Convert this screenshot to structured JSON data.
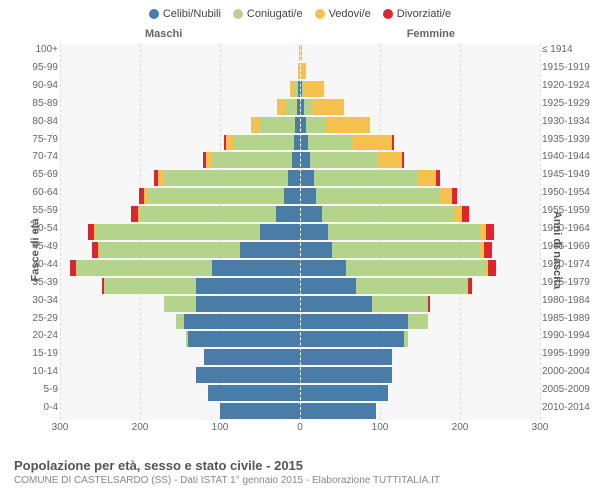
{
  "legend": [
    {
      "label": "Celibi/Nubili",
      "color": "#4a7ca8"
    },
    {
      "label": "Coniugati/e",
      "color": "#b3d48a"
    },
    {
      "label": "Vedovi/e",
      "color": "#f4c04e"
    },
    {
      "label": "Divorziati/e",
      "color": "#d9262f"
    }
  ],
  "gender": {
    "male": "Maschi",
    "female": "Femmine"
  },
  "axis": {
    "left_title": "Fasce di età",
    "right_title": "Anni di nascita",
    "x_ticks": [
      300,
      200,
      100,
      0,
      100,
      200,
      300
    ],
    "x_max": 300
  },
  "rows": [
    {
      "age": "100+",
      "birth": "≤ 1914",
      "m": {
        "c": 0,
        "s": 0,
        "v": 1,
        "d": 0
      },
      "f": {
        "c": 0,
        "s": 0,
        "v": 2,
        "d": 0
      }
    },
    {
      "age": "95-99",
      "birth": "1915-1919",
      "m": {
        "c": 0,
        "s": 0,
        "v": 3,
        "d": 0
      },
      "f": {
        "c": 0,
        "s": 0,
        "v": 8,
        "d": 0
      }
    },
    {
      "age": "90-94",
      "birth": "1920-1924",
      "m": {
        "c": 3,
        "s": 4,
        "v": 6,
        "d": 0
      },
      "f": {
        "c": 2,
        "s": 3,
        "v": 25,
        "d": 0
      }
    },
    {
      "age": "85-89",
      "birth": "1925-1929",
      "m": {
        "c": 4,
        "s": 15,
        "v": 10,
        "d": 0
      },
      "f": {
        "c": 5,
        "s": 10,
        "v": 40,
        "d": 0
      }
    },
    {
      "age": "80-84",
      "birth": "1930-1934",
      "m": {
        "c": 6,
        "s": 45,
        "v": 10,
        "d": 0
      },
      "f": {
        "c": 8,
        "s": 25,
        "v": 55,
        "d": 0
      }
    },
    {
      "age": "75-79",
      "birth": "1935-1939",
      "m": {
        "c": 8,
        "s": 75,
        "v": 10,
        "d": 2
      },
      "f": {
        "c": 10,
        "s": 55,
        "v": 50,
        "d": 3
      }
    },
    {
      "age": "70-74",
      "birth": "1940-1944",
      "m": {
        "c": 10,
        "s": 100,
        "v": 8,
        "d": 3
      },
      "f": {
        "c": 12,
        "s": 85,
        "v": 30,
        "d": 3
      }
    },
    {
      "age": "65-69",
      "birth": "1945-1949",
      "m": {
        "c": 15,
        "s": 155,
        "v": 8,
        "d": 5
      },
      "f": {
        "c": 18,
        "s": 130,
        "v": 22,
        "d": 5
      }
    },
    {
      "age": "60-64",
      "birth": "1950-1954",
      "m": {
        "c": 20,
        "s": 170,
        "v": 5,
        "d": 6
      },
      "f": {
        "c": 20,
        "s": 155,
        "v": 15,
        "d": 6
      }
    },
    {
      "age": "55-59",
      "birth": "1955-1959",
      "m": {
        "c": 30,
        "s": 170,
        "v": 3,
        "d": 8
      },
      "f": {
        "c": 28,
        "s": 165,
        "v": 10,
        "d": 8
      }
    },
    {
      "age": "50-54",
      "birth": "1960-1964",
      "m": {
        "c": 50,
        "s": 205,
        "v": 2,
        "d": 8
      },
      "f": {
        "c": 35,
        "s": 190,
        "v": 8,
        "d": 10
      }
    },
    {
      "age": "45-49",
      "birth": "1965-1969",
      "m": {
        "c": 75,
        "s": 175,
        "v": 2,
        "d": 8
      },
      "f": {
        "c": 40,
        "s": 185,
        "v": 5,
        "d": 10
      }
    },
    {
      "age": "40-44",
      "birth": "1970-1974",
      "m": {
        "c": 110,
        "s": 170,
        "v": 0,
        "d": 8
      },
      "f": {
        "c": 58,
        "s": 175,
        "v": 2,
        "d": 10
      }
    },
    {
      "age": "35-39",
      "birth": "1975-1979",
      "m": {
        "c": 130,
        "s": 115,
        "v": 0,
        "d": 3
      },
      "f": {
        "c": 70,
        "s": 140,
        "v": 0,
        "d": 5
      }
    },
    {
      "age": "30-34",
      "birth": "1980-1984",
      "m": {
        "c": 130,
        "s": 40,
        "v": 0,
        "d": 0
      },
      "f": {
        "c": 90,
        "s": 70,
        "v": 0,
        "d": 2
      }
    },
    {
      "age": "25-29",
      "birth": "1985-1989",
      "m": {
        "c": 145,
        "s": 10,
        "v": 0,
        "d": 0
      },
      "f": {
        "c": 135,
        "s": 25,
        "v": 0,
        "d": 0
      }
    },
    {
      "age": "20-24",
      "birth": "1990-1994",
      "m": {
        "c": 140,
        "s": 2,
        "v": 0,
        "d": 0
      },
      "f": {
        "c": 130,
        "s": 5,
        "v": 0,
        "d": 0
      }
    },
    {
      "age": "15-19",
      "birth": "1995-1999",
      "m": {
        "c": 120,
        "s": 0,
        "v": 0,
        "d": 0
      },
      "f": {
        "c": 115,
        "s": 0,
        "v": 0,
        "d": 0
      }
    },
    {
      "age": "10-14",
      "birth": "2000-2004",
      "m": {
        "c": 130,
        "s": 0,
        "v": 0,
        "d": 0
      },
      "f": {
        "c": 115,
        "s": 0,
        "v": 0,
        "d": 0
      }
    },
    {
      "age": "5-9",
      "birth": "2005-2009",
      "m": {
        "c": 115,
        "s": 0,
        "v": 0,
        "d": 0
      },
      "f": {
        "c": 110,
        "s": 0,
        "v": 0,
        "d": 0
      }
    },
    {
      "age": "0-4",
      "birth": "2010-2014",
      "m": {
        "c": 100,
        "s": 0,
        "v": 0,
        "d": 0
      },
      "f": {
        "c": 95,
        "s": 0,
        "v": 0,
        "d": 0
      }
    }
  ],
  "footer": {
    "title": "Popolazione per età, sesso e stato civile - 2015",
    "subtitle": "COMUNE DI CASTELSARDO (SS) - Dati ISTAT 1° gennaio 2015 - Elaborazione TUTTITALIA.IT"
  },
  "colors": {
    "celibi": "#4a7ca8",
    "coniugati": "#b3d48a",
    "vedovi": "#f4c04e",
    "divorziati": "#d9262f",
    "plot_bg": "#f7f7f7",
    "grid": "#dddddd"
  }
}
